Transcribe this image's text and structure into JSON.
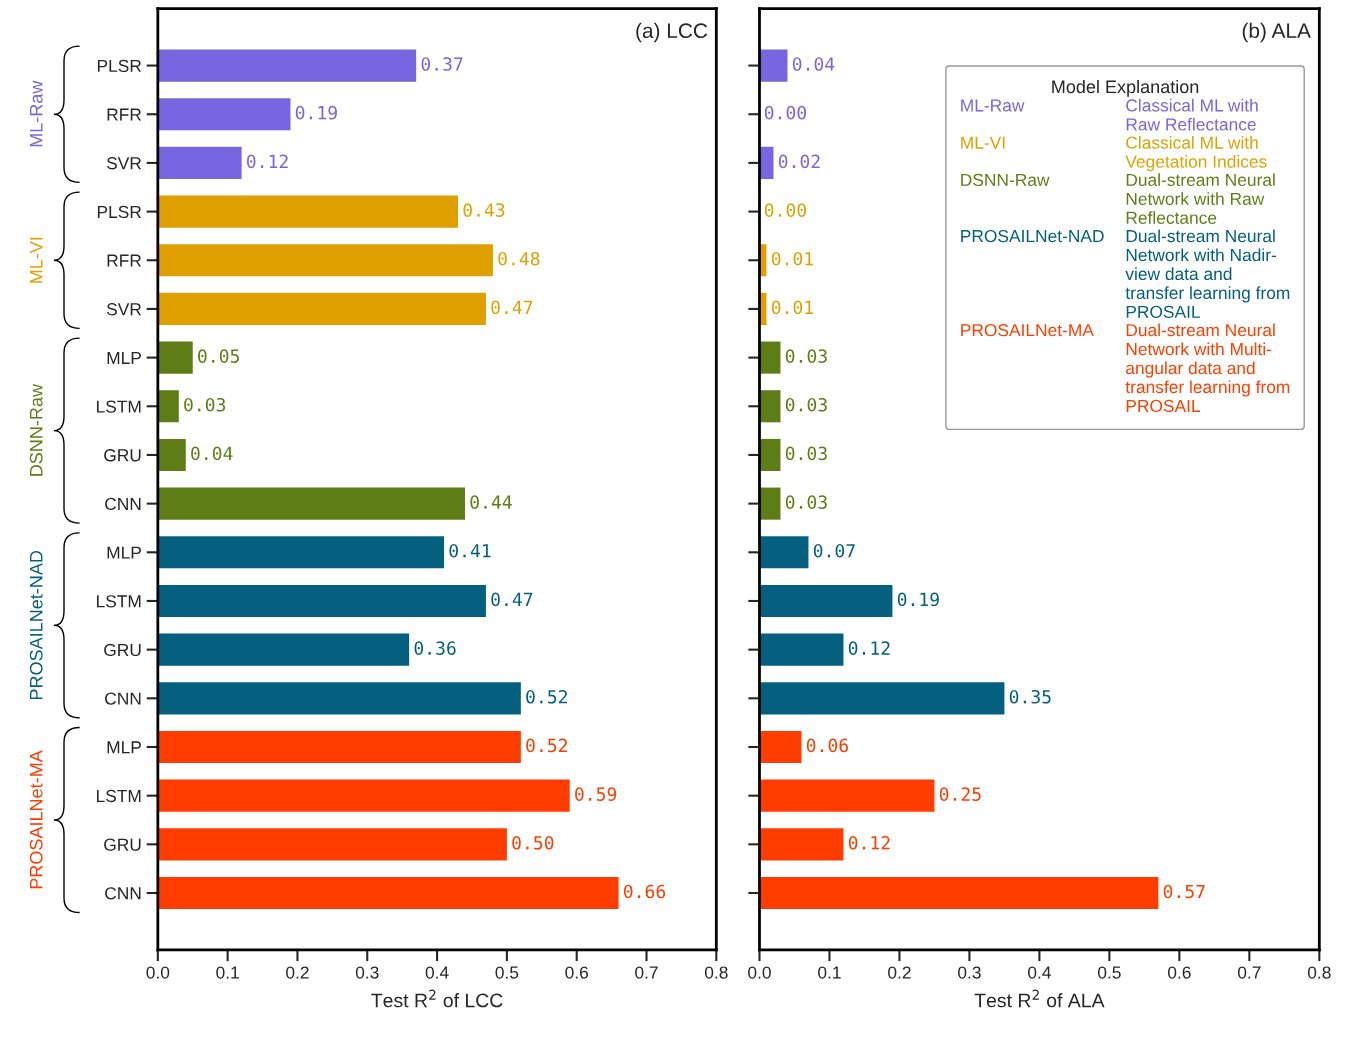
{
  "chart_data": [
    {
      "type": "bar",
      "orientation": "horizontal",
      "title": "(a) LCC",
      "xlabel": "Test R$^{2}$ of LCC",
      "categories": [
        "PLSR",
        "RFR",
        "SVR",
        "PLSR",
        "RFR",
        "SVR",
        "MLP",
        "LSTM",
        "GRU",
        "CNN",
        "MLP",
        "LSTM",
        "GRU",
        "CNN",
        "MLP",
        "LSTM",
        "GRU",
        "CNN"
      ],
      "series": [
        {
          "name": "ML-Raw",
          "color": "#7766e0",
          "values": [
            0.37,
            0.19,
            0.12,
            null,
            null,
            null,
            null,
            null,
            null,
            null,
            null,
            null,
            null,
            null,
            null,
            null,
            null,
            null
          ],
          "value_labels": [
            "0.37",
            "0.19",
            "0.12",
            null,
            null,
            null,
            null,
            null,
            null,
            null,
            null,
            null,
            null,
            null,
            null,
            null,
            null,
            null
          ]
        },
        {
          "name": "ML-VI",
          "color": "#e0a000",
          "values": [
            null,
            null,
            null,
            0.43,
            0.48,
            0.47,
            null,
            null,
            null,
            null,
            null,
            null,
            null,
            null,
            null,
            null,
            null,
            null
          ],
          "value_labels": [
            null,
            null,
            null,
            "0.43",
            "0.48",
            "0.47",
            null,
            null,
            null,
            null,
            null,
            null,
            null,
            null,
            null,
            null,
            null,
            null
          ]
        },
        {
          "name": "DSNN-Raw",
          "color": "#5e7d16",
          "values": [
            null,
            null,
            null,
            null,
            null,
            null,
            0.05,
            0.03,
            0.04,
            0.44,
            null,
            null,
            null,
            null,
            null,
            null,
            null,
            null
          ],
          "value_labels": [
            null,
            null,
            null,
            null,
            null,
            null,
            "0.05",
            "0.03",
            "0.04",
            "0.44",
            null,
            null,
            null,
            null,
            null,
            null,
            null,
            null
          ]
        },
        {
          "name": "PROSAILNet-NAD",
          "color": "#04607e",
          "values": [
            null,
            null,
            null,
            null,
            null,
            null,
            null,
            null,
            null,
            null,
            0.41,
            0.47,
            0.36,
            0.52,
            null,
            null,
            null,
            null
          ],
          "value_labels": [
            null,
            null,
            null,
            null,
            null,
            null,
            null,
            null,
            null,
            null,
            "0.41",
            "0.47",
            "0.36",
            "0.52",
            null,
            null,
            null,
            null
          ]
        },
        {
          "name": "PROSAILNet-MA",
          "color": "#ff3d00",
          "values": [
            null,
            null,
            null,
            null,
            null,
            null,
            null,
            null,
            null,
            null,
            null,
            null,
            null,
            null,
            0.52,
            0.59,
            0.5,
            0.66
          ],
          "value_labels": [
            null,
            null,
            null,
            null,
            null,
            null,
            null,
            null,
            null,
            null,
            null,
            null,
            null,
            null,
            "0.52",
            "0.59",
            "0.50",
            "0.66"
          ]
        }
      ],
      "xlim": [
        0,
        0.8
      ],
      "xticks": [
        {
          "value": 0,
          "label": "0.0"
        },
        0.1,
        0.2,
        0.3,
        0.4,
        0.5,
        0.6,
        0.7,
        0.8
      ]
    },
    {
      "type": "bar",
      "orientation": "horizontal",
      "title": "(b) ALA",
      "xlabel": "Test R$^{2}$ of ALA",
      "categories": [
        null,
        null,
        null,
        null,
        null,
        null,
        null,
        null,
        null,
        null,
        null,
        null,
        null,
        null,
        null,
        null,
        null,
        null
      ],
      "tick_labels": "x",
      "legend": "top right",
      "legend_title": "Model Explanation",
      "series": [
        {
          "name": "ML-Raw",
          "color": "#7766e0",
          "values": [
            0.04,
            0.0,
            0.02,
            null,
            null,
            null,
            null,
            null,
            null,
            null,
            null,
            null,
            null,
            null,
            null,
            null,
            null,
            null
          ],
          "value_labels": [
            "0.04",
            "0.00",
            "0.02",
            null,
            null,
            null,
            null,
            null,
            null,
            null,
            null,
            null,
            null,
            null,
            null,
            null,
            null,
            null
          ]
        },
        {
          "name": "ML-VI",
          "color": "#e0a000",
          "values": [
            null,
            null,
            null,
            0.0,
            0.01,
            0.01,
            null,
            null,
            null,
            null,
            null,
            null,
            null,
            null,
            null,
            null,
            null,
            null
          ],
          "value_labels": [
            null,
            null,
            null,
            "0.00",
            "0.01",
            "0.01",
            null,
            null,
            null,
            null,
            null,
            null,
            null,
            null,
            null,
            null,
            null,
            null
          ]
        },
        {
          "name": "DSNN-Raw",
          "color": "#5e7d16",
          "values": [
            null,
            null,
            null,
            null,
            null,
            null,
            0.03,
            0.03,
            0.03,
            0.03,
            null,
            null,
            null,
            null,
            null,
            null,
            null,
            null
          ],
          "value_labels": [
            null,
            null,
            null,
            null,
            null,
            null,
            "0.03",
            "0.03",
            "0.03",
            "0.03",
            null,
            null,
            null,
            null,
            null,
            null,
            null,
            null
          ]
        },
        {
          "name": "PROSAILNet-NAD",
          "color": "#04607e",
          "values": [
            null,
            null,
            null,
            null,
            null,
            null,
            null,
            null,
            null,
            null,
            0.07,
            0.19,
            0.12,
            0.35,
            null,
            null,
            null,
            null
          ],
          "value_labels": [
            null,
            null,
            null,
            null,
            null,
            null,
            null,
            null,
            null,
            null,
            "0.07",
            "0.19",
            "0.12",
            "0.35",
            null,
            null,
            null,
            null
          ]
        },
        {
          "name": "PROSAILNet-MA",
          "color": "#ff3d00",
          "values": [
            null,
            null,
            null,
            null,
            null,
            null,
            null,
            null,
            null,
            null,
            null,
            null,
            null,
            null,
            0.06,
            0.25,
            0.12,
            0.57
          ],
          "value_labels": [
            null,
            null,
            null,
            null,
            null,
            null,
            null,
            null,
            null,
            null,
            null,
            null,
            null,
            null,
            "0.06",
            "0.25",
            "0.12",
            "0.57"
          ]
        }
      ],
      "annotations": [
        "Classical ML with\nRaw Reflectance",
        "Classical ML with\nVegetation Indices",
        "Dual-stream Neural\nNetwork with Raw\nReflectance",
        "Dual-stream Neural\nNetwork with Nadir-\nview data and\ntransfer learning from\nPROSAIL",
        "Dual-stream Neural\nNetwork with Multi-\nangular data and\ntransfer learning from\nPROSAIL"
      ],
      "xlim": [
        0,
        0.8
      ],
      "xticks": [
        {
          "value": 0,
          "label": "0.0"
        },
        0.1,
        0.2,
        0.3,
        0.4,
        0.5,
        0.6,
        0.7,
        0.8
      ]
    }
  ]
}
